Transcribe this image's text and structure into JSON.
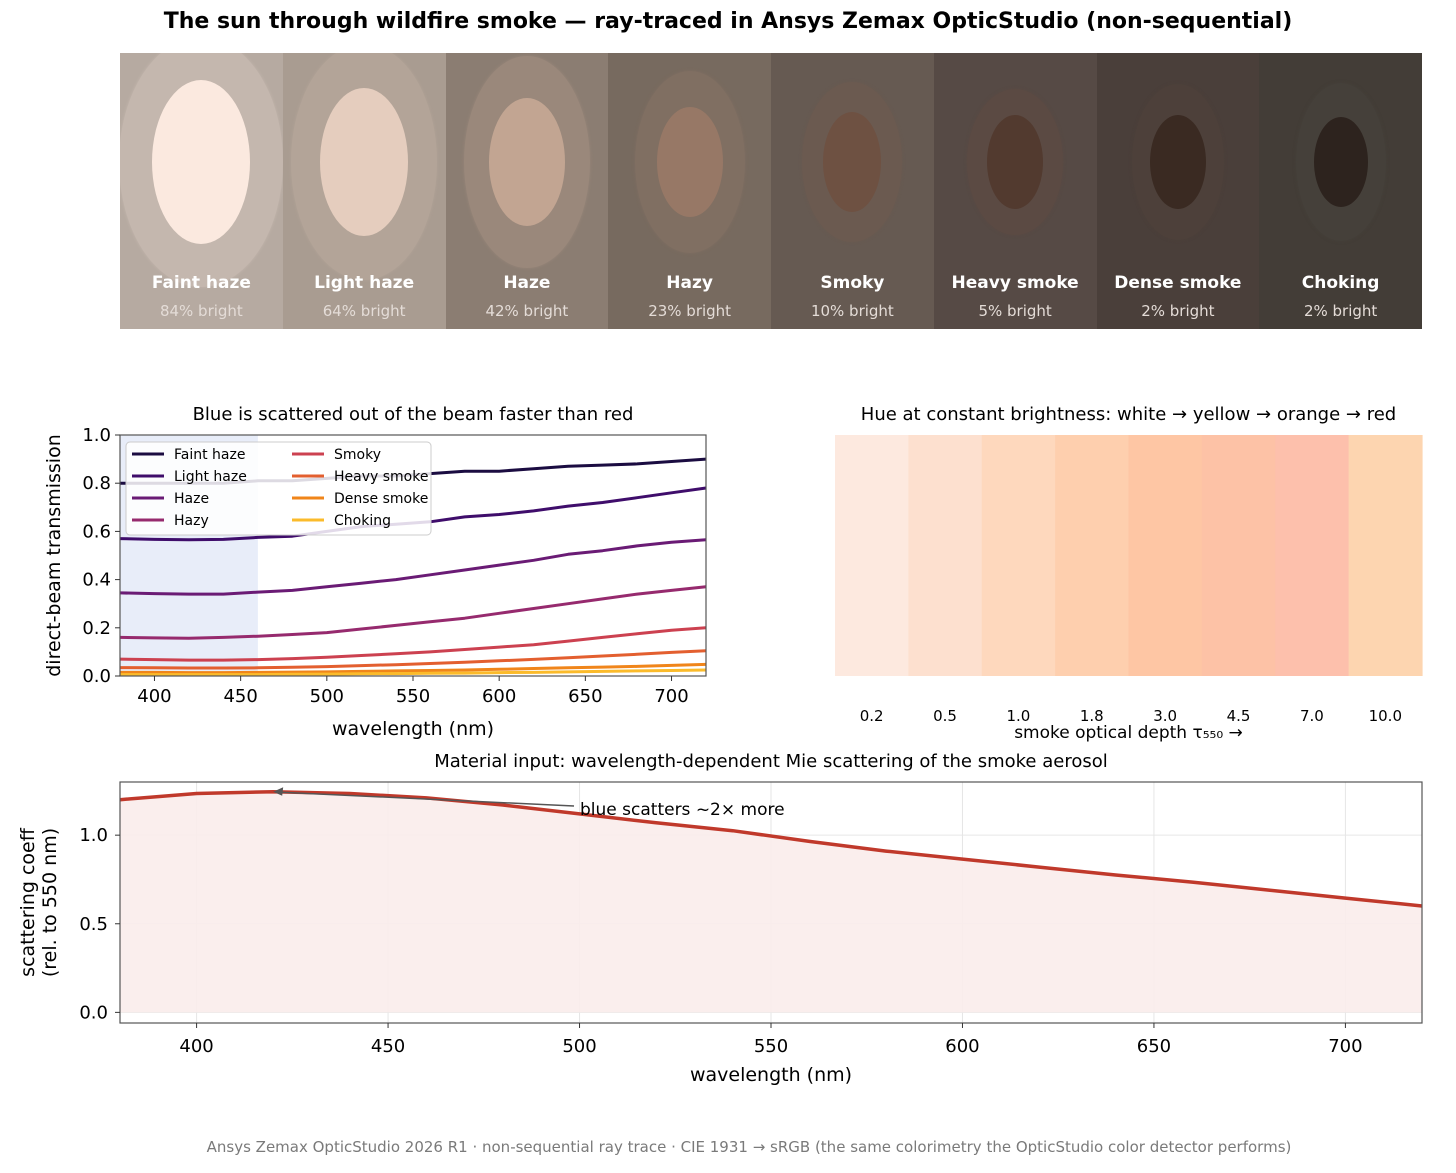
{
  "title": "The sun through wildfire smoke — ray-traced in Ansys Zemax OpticStudio (non-sequential)",
  "panels": [
    {
      "name": "Faint haze",
      "brightness": "84% bright",
      "sky": "#b6aaa1",
      "halo": "#c4b7ae",
      "disc": "#fbe9df"
    },
    {
      "name": "Light haze",
      "brightness": "64% bright",
      "sky": "#a99c91",
      "halo": "#b3a498",
      "disc": "#e5cdbe"
    },
    {
      "name": "Haze",
      "brightness": "42% bright",
      "sky": "#8b7d72",
      "halo": "#9a887b",
      "disc": "#c2a592"
    },
    {
      "name": "Hazy",
      "brightness": "23% bright",
      "sky": "#776a5f",
      "halo": "#806f62",
      "disc": "#977866"
    },
    {
      "name": "Smoky",
      "brightness": "10% bright",
      "sky": "#665a52",
      "halo": "#6b5a50",
      "disc": "#6e5142"
    },
    {
      "name": "Heavy smoke",
      "brightness": "5% bright",
      "sky": "#564a45",
      "halo": "#5b4a43",
      "disc": "#523a2f"
    },
    {
      "name": "Dense smoke",
      "brightness": "2% bright",
      "sky": "#4a3f3a",
      "halo": "#4d403a",
      "disc": "#3a2a22"
    },
    {
      "name": "Choking",
      "brightness": "2% bright",
      "sky": "#433d37",
      "halo": "#45403a",
      "disc": "#2d231e"
    }
  ],
  "chart_data": [
    {
      "type": "line",
      "title": "Blue is scattered out of the beam faster than red",
      "xlabel": "wavelength (nm)",
      "ylabel": "direct-beam transmission",
      "xlim": [
        380,
        720
      ],
      "ylim": [
        0,
        1
      ],
      "xticks": [
        "400",
        "450",
        "500",
        "550",
        "600",
        "650",
        "700"
      ],
      "yticks": [
        "0.0",
        "0.2",
        "0.4",
        "0.6",
        "0.8",
        "1.0"
      ],
      "shaded_band": [
        380,
        460
      ],
      "legend_position": "upper-left",
      "x": [
        380,
        400,
        420,
        440,
        460,
        480,
        500,
        520,
        540,
        560,
        580,
        600,
        620,
        640,
        660,
        680,
        700,
        720
      ],
      "series": [
        {
          "name": "Faint haze",
          "color": "#1b0c41",
          "values": [
            0.8,
            0.8,
            0.8,
            0.8,
            0.81,
            0.81,
            0.82,
            0.83,
            0.83,
            0.84,
            0.85,
            0.85,
            0.86,
            0.87,
            0.875,
            0.88,
            0.89,
            0.9
          ]
        },
        {
          "name": "Light haze",
          "color": "#3f0d6b",
          "values": [
            0.57,
            0.567,
            0.565,
            0.567,
            0.575,
            0.58,
            0.6,
            0.62,
            0.63,
            0.64,
            0.66,
            0.67,
            0.685,
            0.705,
            0.72,
            0.74,
            0.76,
            0.78
          ]
        },
        {
          "name": "Haze",
          "color": "#6a1b75",
          "values": [
            0.345,
            0.342,
            0.34,
            0.34,
            0.348,
            0.355,
            0.37,
            0.385,
            0.4,
            0.42,
            0.44,
            0.46,
            0.48,
            0.505,
            0.52,
            0.54,
            0.555,
            0.565
          ]
        },
        {
          "name": "Hazy",
          "color": "#962a6e",
          "values": [
            0.16,
            0.158,
            0.157,
            0.16,
            0.165,
            0.172,
            0.18,
            0.195,
            0.21,
            0.225,
            0.24,
            0.26,
            0.28,
            0.3,
            0.32,
            0.34,
            0.355,
            0.37
          ]
        },
        {
          "name": "Smoky",
          "color": "#cc4150",
          "values": [
            0.07,
            0.068,
            0.066,
            0.066,
            0.068,
            0.072,
            0.078,
            0.085,
            0.092,
            0.1,
            0.11,
            0.12,
            0.13,
            0.145,
            0.16,
            0.175,
            0.19,
            0.2
          ]
        },
        {
          "name": "Heavy smoke",
          "color": "#e35f2f",
          "values": [
            0.035,
            0.034,
            0.033,
            0.033,
            0.034,
            0.036,
            0.039,
            0.043,
            0.047,
            0.052,
            0.057,
            0.063,
            0.069,
            0.076,
            0.083,
            0.09,
            0.098,
            0.105
          ]
        },
        {
          "name": "Dense smoke",
          "color": "#f0851a",
          "values": [
            0.015,
            0.015,
            0.014,
            0.014,
            0.015,
            0.016,
            0.017,
            0.019,
            0.021,
            0.023,
            0.025,
            0.028,
            0.031,
            0.034,
            0.037,
            0.04,
            0.044,
            0.048
          ]
        },
        {
          "name": "Choking",
          "color": "#fbbb2b",
          "values": [
            0.006,
            0.006,
            0.006,
            0.006,
            0.006,
            0.007,
            0.008,
            0.009,
            0.01,
            0.011,
            0.012,
            0.014,
            0.015,
            0.017,
            0.019,
            0.021,
            0.023,
            0.025
          ]
        }
      ]
    },
    {
      "type": "heatmap",
      "title": "Hue at constant brightness: white → yellow → orange → red",
      "xlabel": "smoke optical depth  τ₅₅₀  →",
      "categories": [
        "0.2",
        "0.5",
        "1.0",
        "1.8",
        "3.0",
        "4.5",
        "7.0",
        "10.0"
      ],
      "colors": [
        "#fde9df",
        "#fde0cf",
        "#fed8bd",
        "#fecfae",
        "#fec6a4",
        "#fdc2a6",
        "#fdc0ac",
        "#fdd5b0"
      ]
    },
    {
      "type": "area",
      "title": "Material input: wavelength-dependent Mie scattering of the smoke aerosol",
      "xlabel": "wavelength (nm)",
      "ylabel_lines": [
        "scattering coeff",
        "(rel. to 550 nm)"
      ],
      "xlim": [
        380,
        720
      ],
      "ylim": [
        -0.06,
        1.3
      ],
      "grid": true,
      "xticks": [
        "400",
        "450",
        "500",
        "550",
        "600",
        "650",
        "700"
      ],
      "yticks": [
        "0.0",
        "0.5",
        "1.0"
      ],
      "color": "#c0392b",
      "fill": "#f9eceb",
      "x": [
        380,
        400,
        420,
        440,
        460,
        480,
        500,
        520,
        540,
        560,
        580,
        600,
        620,
        640,
        660,
        680,
        700,
        720
      ],
      "values": [
        1.2,
        1.235,
        1.245,
        1.235,
        1.21,
        1.17,
        1.12,
        1.07,
        1.025,
        0.965,
        0.91,
        0.865,
        0.82,
        0.775,
        0.735,
        0.69,
        0.645,
        0.6
      ],
      "annotation": {
        "text": "blue scatters ~2× more",
        "x": 420,
        "y": 1.245
      }
    }
  ],
  "footer": "Ansys Zemax OpticStudio 2026 R1 · non-sequential ray trace · CIE 1931 → sRGB (the same colorimetry the OpticStudio color detector performs)"
}
